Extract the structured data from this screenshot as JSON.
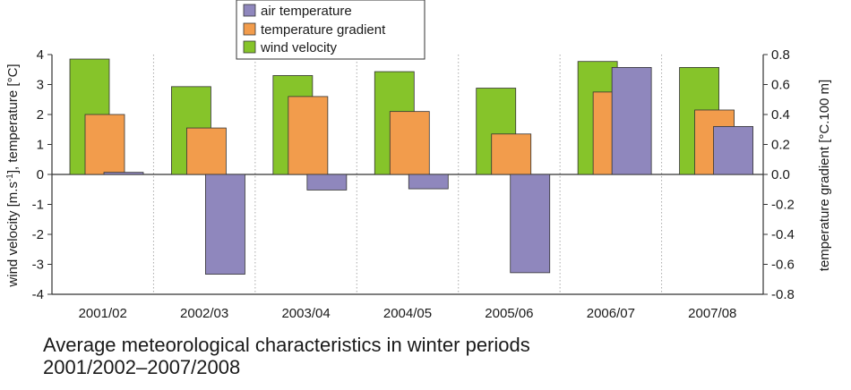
{
  "caption": {
    "line1": "Average meteorological characteristics in winter periods",
    "line2": "2001/2002–2007/2008"
  },
  "chart_data": {
    "type": "bar",
    "title": "",
    "categories": [
      "2001/02",
      "2002/03",
      "2003/04",
      "2004/05",
      "2005/06",
      "2006/07",
      "2007/08"
    ],
    "series": [
      {
        "name": "wind velocity",
        "axis": "left",
        "color": "#86c42a",
        "values": [
          3.85,
          2.93,
          3.3,
          3.43,
          2.88,
          3.77,
          3.57
        ]
      },
      {
        "name": "temperature gradient",
        "axis": "right",
        "color": "#f29c4c",
        "values": [
          0.4,
          0.31,
          0.52,
          0.42,
          0.27,
          0.55,
          0.43
        ]
      },
      {
        "name": "air temperature",
        "axis": "left",
        "color": "#8f87bd",
        "values": [
          0.07,
          -3.33,
          -0.52,
          -0.48,
          -3.28,
          3.57,
          1.6
        ]
      }
    ],
    "legend_order": [
      "air temperature",
      "temperature gradient",
      "wind velocity"
    ],
    "legend_position": "top-center",
    "y_left": {
      "label_main": "wind velocity [m.s",
      "label_sup": "-1",
      "label_rest": "], temperature [°C]",
      "ylim": [
        -4,
        4
      ],
      "ticks": [
        "-4",
        "-3",
        "-2",
        "-1",
        "0",
        "1",
        "2",
        "3",
        "4"
      ]
    },
    "y_right": {
      "label": "temperature gradient [°C.100 m]",
      "ylim": [
        -0.8,
        0.8
      ],
      "ticks": [
        "-0.8",
        "-0.6",
        "-0.4",
        "-0.2",
        "0.0",
        "0.2",
        "0.4",
        "0.6",
        "0.8"
      ]
    },
    "grid": "vertical-dotted"
  }
}
